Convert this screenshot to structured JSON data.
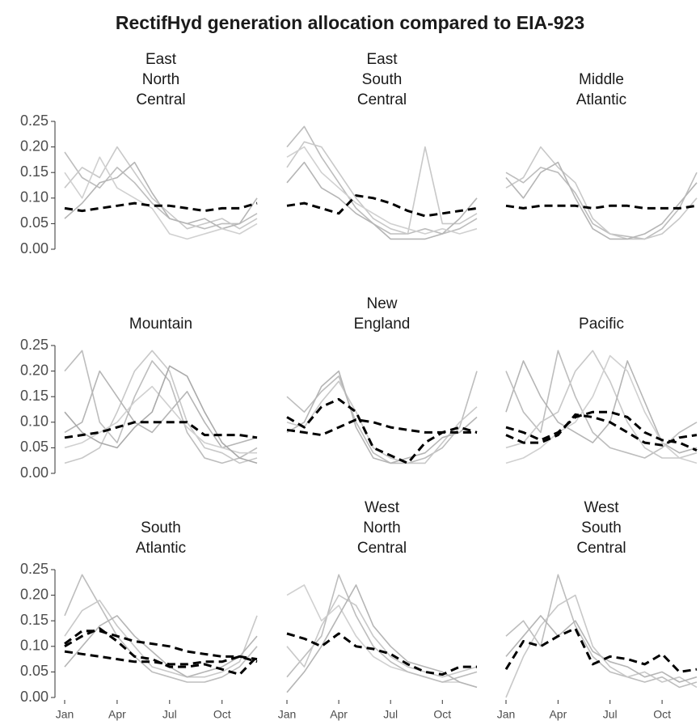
{
  "chart_data": {
    "type": "line",
    "title": "RectifHyd generation allocation compared to EIA-923",
    "x": [
      1,
      2,
      3,
      4,
      5,
      6,
      7,
      8,
      9,
      10,
      11,
      12
    ],
    "xlim": [
      1,
      12
    ],
    "xticks": [
      {
        "value": 1,
        "label": "Jan"
      },
      {
        "value": 4,
        "label": "Apr"
      },
      {
        "value": 7,
        "label": "Jul"
      },
      {
        "value": 10,
        "label": "Oct"
      }
    ],
    "ylim": [
      0,
      0.25
    ],
    "yticks": [
      {
        "value": 0,
        "label": "0.00"
      },
      {
        "value": 0.05,
        "label": "0.05"
      },
      {
        "value": 0.1,
        "label": "0.10"
      },
      {
        "value": 0.15,
        "label": "0.15"
      },
      {
        "value": 0.2,
        "label": "0.20"
      },
      {
        "value": 0.25,
        "label": "0.25"
      }
    ],
    "facets": [
      {
        "title": [
          "East",
          "North",
          "Central"
        ],
        "series": [
          {
            "color": "#bdbdbd",
            "values": [
              0.19,
              0.14,
              0.12,
              0.16,
              0.13,
              0.09,
              0.06,
              0.05,
              0.04,
              0.05,
              0.05,
              0.07
            ]
          },
          {
            "color": "#c8c8c8",
            "values": [
              0.12,
              0.16,
              0.14,
              0.2,
              0.15,
              0.1,
              0.07,
              0.04,
              0.05,
              0.06,
              0.04,
              0.06
            ]
          },
          {
            "color": "#b5b5b5",
            "values": [
              0.06,
              0.09,
              0.13,
              0.14,
              0.17,
              0.11,
              0.06,
              0.05,
              0.06,
              0.04,
              0.05,
              0.1
            ]
          },
          {
            "color": "#d0d0d0",
            "values": [
              0.15,
              0.1,
              0.18,
              0.12,
              0.1,
              0.08,
              0.03,
              0.02,
              0.03,
              0.04,
              0.03,
              0.05
            ]
          },
          {
            "color": "#000000",
            "dashed": true,
            "values": [
              0.08,
              0.075,
              0.08,
              0.085,
              0.09,
              0.085,
              0.085,
              0.08,
              0.075,
              0.08,
              0.08,
              0.09
            ]
          }
        ]
      },
      {
        "title": [
          "East",
          "South",
          "Central"
        ],
        "series": [
          {
            "color": "#bdbdbd",
            "values": [
              0.2,
              0.24,
              0.18,
              0.13,
              0.08,
              0.05,
              0.03,
              0.03,
              0.04,
              0.03,
              0.04,
              0.06
            ]
          },
          {
            "color": "#c8c8c8",
            "values": [
              0.16,
              0.21,
              0.2,
              0.15,
              0.1,
              0.06,
              0.04,
              0.03,
              0.2,
              0.05,
              0.05,
              0.07
            ]
          },
          {
            "color": "#b5b5b5",
            "values": [
              0.13,
              0.17,
              0.12,
              0.1,
              0.07,
              0.05,
              0.02,
              0.02,
              0.02,
              0.03,
              0.06,
              0.1
            ]
          },
          {
            "color": "#d0d0d0",
            "values": [
              0.18,
              0.2,
              0.15,
              0.12,
              0.09,
              0.07,
              0.05,
              0.04,
              0.03,
              0.04,
              0.03,
              0.04
            ]
          },
          {
            "color": "#000000",
            "dashed": true,
            "values": [
              0.085,
              0.09,
              0.08,
              0.07,
              0.105,
              0.1,
              0.09,
              0.075,
              0.065,
              0.07,
              0.075,
              0.08
            ]
          }
        ]
      },
      {
        "title": [
          "Middle",
          "Atlantic"
        ],
        "series": [
          {
            "color": "#bdbdbd",
            "values": [
              0.15,
              0.13,
              0.16,
              0.15,
              0.11,
              0.05,
              0.03,
              0.025,
              0.02,
              0.04,
              0.08,
              0.15
            ]
          },
          {
            "color": "#c8c8c8",
            "values": [
              0.12,
              0.14,
              0.2,
              0.16,
              0.13,
              0.06,
              0.03,
              0.02,
              0.02,
              0.03,
              0.06,
              0.1
            ]
          },
          {
            "color": "#b5b5b5",
            "values": [
              0.14,
              0.1,
              0.15,
              0.17,
              0.1,
              0.04,
              0.02,
              0.02,
              0.03,
              0.05,
              0.09,
              0.13
            ]
          },
          {
            "color": "#000000",
            "dashed": true,
            "values": [
              0.085,
              0.08,
              0.085,
              0.085,
              0.085,
              0.08,
              0.085,
              0.085,
              0.08,
              0.08,
              0.08,
              0.085
            ]
          }
        ]
      },
      {
        "title": [
          "Mountain"
        ],
        "series": [
          {
            "color": "#bdbdbd",
            "values": [
              0.2,
              0.24,
              0.1,
              0.06,
              0.15,
              0.22,
              0.18,
              0.08,
              0.03,
              0.02,
              0.03,
              0.05
            ]
          },
          {
            "color": "#c8c8c8",
            "values": [
              0.02,
              0.03,
              0.05,
              0.12,
              0.2,
              0.24,
              0.2,
              0.1,
              0.05,
              0.04,
              0.02,
              0.03
            ]
          },
          {
            "color": "#b5b5b5",
            "values": [
              0.08,
              0.1,
              0.2,
              0.15,
              0.1,
              0.08,
              0.12,
              0.16,
              0.1,
              0.05,
              0.06,
              0.07
            ]
          },
          {
            "color": "#d0d0d0",
            "values": [
              0.05,
              0.06,
              0.08,
              0.1,
              0.14,
              0.17,
              0.13,
              0.09,
              0.06,
              0.05,
              0.04,
              0.04
            ]
          },
          {
            "color": "#aaaaaa",
            "values": [
              0.12,
              0.08,
              0.06,
              0.05,
              0.09,
              0.12,
              0.21,
              0.19,
              0.12,
              0.06,
              0.03,
              0.02
            ]
          },
          {
            "color": "#000000",
            "dashed": true,
            "values": [
              0.07,
              0.075,
              0.08,
              0.09,
              0.1,
              0.1,
              0.1,
              0.1,
              0.075,
              0.075,
              0.075,
              0.07
            ]
          }
        ]
      },
      {
        "title": [
          "New",
          "England"
        ],
        "series": [
          {
            "color": "#bdbdbd",
            "values": [
              0.15,
              0.12,
              0.16,
              0.19,
              0.1,
              0.04,
              0.02,
              0.02,
              0.03,
              0.05,
              0.09,
              0.2
            ]
          },
          {
            "color": "#c8c8c8",
            "values": [
              0.1,
              0.09,
              0.14,
              0.18,
              0.12,
              0.05,
              0.03,
              0.02,
              0.02,
              0.06,
              0.1,
              0.13
            ]
          },
          {
            "color": "#b5b5b5",
            "values": [
              0.08,
              0.1,
              0.17,
              0.2,
              0.09,
              0.03,
              0.02,
              0.03,
              0.04,
              0.07,
              0.08,
              0.11
            ]
          },
          {
            "color": "#000000",
            "dashed": true,
            "values": [
              0.11,
              0.09,
              0.13,
              0.145,
              0.12,
              0.05,
              0.035,
              0.02,
              0.06,
              0.08,
              0.09,
              0.08
            ]
          },
          {
            "color": "#000000",
            "dashed": true,
            "values": [
              0.085,
              0.08,
              0.075,
              0.09,
              0.105,
              0.1,
              0.09,
              0.085,
              0.08,
              0.08,
              0.08,
              0.08
            ]
          }
        ]
      },
      {
        "title": [
          "Pacific"
        ],
        "series": [
          {
            "color": "#bdbdbd",
            "values": [
              0.2,
              0.12,
              0.08,
              0.24,
              0.15,
              0.08,
              0.05,
              0.04,
              0.03,
              0.05,
              0.08,
              0.1
            ]
          },
          {
            "color": "#c8c8c8",
            "values": [
              0.05,
              0.06,
              0.1,
              0.12,
              0.2,
              0.24,
              0.18,
              0.1,
              0.05,
              0.03,
              0.03,
              0.04
            ]
          },
          {
            "color": "#b5b5b5",
            "values": [
              0.12,
              0.22,
              0.15,
              0.1,
              0.08,
              0.06,
              0.1,
              0.22,
              0.14,
              0.06,
              0.04,
              0.05
            ]
          },
          {
            "color": "#d0d0d0",
            "values": [
              0.02,
              0.03,
              0.05,
              0.08,
              0.1,
              0.15,
              0.23,
              0.2,
              0.12,
              0.06,
              0.03,
              0.02
            ]
          },
          {
            "color": "#000000",
            "dashed": true,
            "values": [
              0.075,
              0.06,
              0.06,
              0.075,
              0.115,
              0.11,
              0.1,
              0.08,
              0.06,
              0.055,
              0.07,
              0.075
            ]
          },
          {
            "color": "#000000",
            "dashed": true,
            "values": [
              0.09,
              0.08,
              0.065,
              0.08,
              0.11,
              0.12,
              0.12,
              0.11,
              0.08,
              0.065,
              0.06,
              0.045
            ]
          }
        ]
      },
      {
        "title": [
          "South",
          "Atlantic"
        ],
        "series": [
          {
            "color": "#bdbdbd",
            "values": [
              0.16,
              0.24,
              0.18,
              0.12,
              0.08,
              0.05,
              0.04,
              0.03,
              0.03,
              0.04,
              0.06,
              0.1
            ]
          },
          {
            "color": "#c8c8c8",
            "values": [
              0.12,
              0.17,
              0.19,
              0.14,
              0.1,
              0.06,
              0.05,
              0.04,
              0.04,
              0.05,
              0.07,
              0.16
            ]
          },
          {
            "color": "#b5b5b5",
            "values": [
              0.06,
              0.1,
              0.14,
              0.16,
              0.12,
              0.09,
              0.06,
              0.04,
              0.05,
              0.06,
              0.08,
              0.12
            ]
          },
          {
            "color": "#000000",
            "dashed": true,
            "values": [
              0.1,
              0.12,
              0.135,
              0.11,
              0.08,
              0.075,
              0.06,
              0.06,
              0.065,
              0.055,
              0.045,
              0.08
            ]
          },
          {
            "color": "#000000",
            "dashed": true,
            "values": [
              0.09,
              0.085,
              0.08,
              0.075,
              0.07,
              0.07,
              0.065,
              0.065,
              0.07,
              0.07,
              0.08,
              0.07
            ]
          },
          {
            "color": "#000000",
            "dashed": true,
            "values": [
              0.105,
              0.13,
              0.13,
              0.12,
              0.11,
              0.105,
              0.1,
              0.09,
              0.085,
              0.08,
              0.08,
              0.075
            ]
          }
        ]
      },
      {
        "title": [
          "West",
          "North",
          "Central"
        ],
        "series": [
          {
            "color": "#d0d0d0",
            "values": [
              0.2,
              0.22,
              0.15,
              0.18,
              0.12,
              0.08,
              0.06,
              0.05,
              0.04,
              0.03,
              0.03,
              0.02
            ]
          },
          {
            "color": "#bdbdbd",
            "values": [
              0.04,
              0.08,
              0.12,
              0.24,
              0.16,
              0.1,
              0.07,
              0.05,
              0.04,
              0.03,
              0.04,
              0.05
            ]
          },
          {
            "color": "#c8c8c8",
            "values": [
              0.1,
              0.06,
              0.14,
              0.2,
              0.18,
              0.12,
              0.08,
              0.06,
              0.05,
              0.04,
              0.05,
              0.06
            ]
          },
          {
            "color": "#b5b5b5",
            "values": [
              0.01,
              0.05,
              0.1,
              0.16,
              0.22,
              0.14,
              0.1,
              0.07,
              0.06,
              0.05,
              0.03,
              0.02
            ]
          },
          {
            "color": "#000000",
            "dashed": true,
            "values": [
              0.125,
              0.115,
              0.1,
              0.125,
              0.1,
              0.095,
              0.085,
              0.065,
              0.05,
              0.045,
              0.06,
              0.06
            ]
          }
        ]
      },
      {
        "title": [
          "West",
          "South",
          "Central"
        ],
        "series": [
          {
            "color": "#bdbdbd",
            "values": [
              0.12,
              0.15,
              0.1,
              0.24,
              0.14,
              0.08,
              0.05,
              0.04,
              0.03,
              0.04,
              0.02,
              0.03
            ]
          },
          {
            "color": "#c8c8c8",
            "values": [
              0.0,
              0.08,
              0.14,
              0.18,
              0.2,
              0.1,
              0.06,
              0.04,
              0.05,
              0.03,
              0.04,
              0.02
            ]
          },
          {
            "color": "#b5b5b5",
            "values": [
              0.08,
              0.12,
              0.16,
              0.12,
              0.15,
              0.09,
              0.07,
              0.06,
              0.04,
              0.05,
              0.03,
              0.04
            ]
          },
          {
            "color": "#000000",
            "dashed": true,
            "values": [
              0.055,
              0.11,
              0.1,
              0.12,
              0.135,
              0.065,
              0.08,
              0.075,
              0.065,
              0.085,
              0.05,
              0.055
            ]
          }
        ]
      }
    ]
  }
}
